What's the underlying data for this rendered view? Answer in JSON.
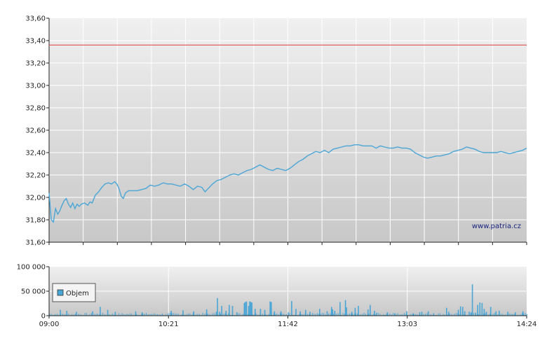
{
  "chart_data": [
    {
      "type": "line",
      "title": "",
      "watermark": "www.patria.cz",
      "y_ticks": [
        "33,60",
        "33,40",
        "33,20",
        "33,00",
        "32,80",
        "32,60",
        "32,40",
        "32,20",
        "32,00",
        "31,80",
        "31,60"
      ],
      "ylim": [
        31.6,
        33.6
      ],
      "reference_line": {
        "value": 33.36,
        "color": "#e06060"
      },
      "line_color": "#4aa6d6",
      "grid": true,
      "series": [
        {
          "points": [
            [
              0,
              32.04
            ],
            [
              2,
              31.8
            ],
            [
              4,
              31.78
            ],
            [
              6,
              31.9
            ],
            [
              8,
              31.85
            ],
            [
              10,
              31.88
            ],
            [
              12,
              31.93
            ],
            [
              14,
              31.97
            ],
            [
              16,
              31.99
            ],
            [
              18,
              31.94
            ],
            [
              20,
              31.91
            ],
            [
              22,
              31.95
            ],
            [
              24,
              31.9
            ],
            [
              26,
              31.94
            ],
            [
              28,
              31.92
            ],
            [
              30,
              31.94
            ],
            [
              33,
              31.95
            ],
            [
              36,
              31.93
            ],
            [
              38,
              31.96
            ],
            [
              40,
              31.95
            ],
            [
              43,
              32.02
            ],
            [
              46,
              32.05
            ],
            [
              49,
              32.09
            ],
            [
              52,
              32.12
            ],
            [
              55,
              32.13
            ],
            [
              58,
              32.12
            ],
            [
              61,
              32.14
            ],
            [
              63,
              32.12
            ],
            [
              65,
              32.08
            ],
            [
              67,
              32.01
            ],
            [
              69,
              31.99
            ],
            [
              71,
              32.04
            ],
            [
              74,
              32.06
            ],
            [
              78,
              32.06
            ],
            [
              82,
              32.06
            ],
            [
              86,
              32.07
            ],
            [
              90,
              32.08
            ],
            [
              94,
              32.11
            ],
            [
              98,
              32.1
            ],
            [
              102,
              32.11
            ],
            [
              106,
              32.13
            ],
            [
              110,
              32.12
            ],
            [
              114,
              32.12
            ],
            [
              118,
              32.11
            ],
            [
              122,
              32.1
            ],
            [
              126,
              32.12
            ],
            [
              130,
              32.1
            ],
            [
              134,
              32.07
            ],
            [
              138,
              32.1
            ],
            [
              142,
              32.09
            ],
            [
              145,
              32.05
            ],
            [
              148,
              32.08
            ],
            [
              152,
              32.12
            ],
            [
              156,
              32.15
            ],
            [
              160,
              32.16
            ],
            [
              164,
              32.18
            ],
            [
              168,
              32.2
            ],
            [
              172,
              32.21
            ],
            [
              176,
              32.2
            ],
            [
              180,
              32.22
            ],
            [
              184,
              32.24
            ],
            [
              188,
              32.25
            ],
            [
              192,
              32.27
            ],
            [
              196,
              32.29
            ],
            [
              200,
              32.27
            ],
            [
              204,
              32.25
            ],
            [
              208,
              32.24
            ],
            [
              212,
              32.26
            ],
            [
              216,
              32.25
            ],
            [
              220,
              32.24
            ],
            [
              224,
              32.26
            ],
            [
              228,
              32.29
            ],
            [
              232,
              32.32
            ],
            [
              236,
              32.34
            ],
            [
              240,
              32.37
            ],
            [
              244,
              32.39
            ],
            [
              248,
              32.41
            ],
            [
              252,
              32.4
            ],
            [
              256,
              32.42
            ],
            [
              260,
              32.4
            ],
            [
              264,
              32.43
            ],
            [
              268,
              32.44
            ],
            [
              272,
              32.45
            ],
            [
              276,
              32.46
            ],
            [
              280,
              32.46
            ],
            [
              284,
              32.47
            ],
            [
              288,
              32.47
            ],
            [
              292,
              32.46
            ],
            [
              296,
              32.46
            ],
            [
              300,
              32.46
            ],
            [
              304,
              32.44
            ],
            [
              308,
              32.46
            ],
            [
              312,
              32.45
            ],
            [
              316,
              32.44
            ],
            [
              320,
              32.44
            ],
            [
              324,
              32.45
            ],
            [
              328,
              32.44
            ],
            [
              332,
              32.44
            ],
            [
              336,
              32.43
            ],
            [
              340,
              32.4
            ],
            [
              344,
              32.38
            ],
            [
              348,
              32.36
            ],
            [
              352,
              32.35
            ],
            [
              356,
              32.36
            ],
            [
              360,
              32.37
            ],
            [
              364,
              32.37
            ],
            [
              368,
              32.38
            ],
            [
              372,
              32.39
            ],
            [
              376,
              32.41
            ],
            [
              380,
              32.42
            ],
            [
              384,
              32.43
            ],
            [
              388,
              32.45
            ],
            [
              392,
              32.44
            ],
            [
              396,
              32.43
            ],
            [
              400,
              32.41
            ],
            [
              404,
              32.4
            ],
            [
              408,
              32.4
            ],
            [
              412,
              32.4
            ],
            [
              416,
              32.4
            ],
            [
              420,
              32.41
            ],
            [
              424,
              32.4
            ],
            [
              428,
              32.39
            ],
            [
              432,
              32.4
            ],
            [
              436,
              32.41
            ],
            [
              440,
              32.42
            ],
            [
              444,
              32.44
            ]
          ]
        }
      ]
    },
    {
      "type": "bar",
      "title": "",
      "y_ticks": [
        "100 000",
        "50 000",
        "0"
      ],
      "ylim": [
        0,
        100000
      ],
      "x_ticks": [
        "09:00",
        "10:21",
        "11:42",
        "13:03",
        "14:24"
      ],
      "legend": {
        "label": "Objem",
        "placement": "left",
        "swatch_color": "#4aa6d6"
      },
      "bar_color": "#4aa6d6",
      "series": [
        {
          "name": "Objem",
          "spikes": [
            [
              10,
              12000
            ],
            [
              16,
              10000
            ],
            [
              25,
              8000
            ],
            [
              40,
              9000
            ],
            [
              47,
              18000
            ],
            [
              54,
              12000
            ],
            [
              61,
              8000
            ],
            [
              80,
              9000
            ],
            [
              86,
              7000
            ],
            [
              113,
              10000
            ],
            [
              124,
              11000
            ],
            [
              134,
              9000
            ],
            [
              146,
              13000
            ],
            [
              155,
              8000
            ],
            [
              158,
              8000
            ],
            [
              164,
              10000
            ],
            [
              170,
              20000
            ],
            [
              174,
              7000
            ],
            [
              181,
              6000
            ],
            [
              188,
              5000
            ],
            [
              196,
              14000
            ],
            [
              200,
              12000
            ],
            [
              206,
              17000
            ],
            [
              209,
              9000
            ],
            [
              215,
              9000
            ],
            [
              222,
              7000
            ],
            [
              233,
              9000
            ],
            [
              242,
              8000
            ],
            [
              251,
              14000
            ],
            [
              258,
              9000
            ],
            [
              265,
              10000
            ],
            [
              275,
              32000
            ],
            [
              281,
              8000
            ],
            [
              287,
              20000
            ],
            [
              296,
              13000
            ],
            [
              304,
              6000
            ],
            [
              314,
              7000
            ],
            [
              321,
              5000
            ],
            [
              332,
              9000
            ],
            [
              338,
              5000
            ],
            [
              344,
              7000
            ],
            [
              352,
              9000
            ],
            [
              357,
              5000
            ],
            [
              371,
              8000
            ],
            [
              386,
              9000
            ],
            [
              390,
              8000
            ],
            [
              392,
              7000
            ],
            [
              398,
              9000
            ],
            [
              402,
              26000
            ],
            [
              406,
              8000
            ],
            [
              410,
              18000
            ],
            [
              418,
              10000
            ],
            [
              426,
              8000
            ],
            [
              433,
              7000
            ],
            [
              440,
              9000
            ]
          ],
          "tall_bars": [
            [
              156,
              36000
            ],
            [
              160,
              20000
            ],
            [
              167,
              22000
            ],
            [
              185,
              20000
            ],
            [
              225,
              30000
            ],
            [
              229,
              14000
            ],
            [
              238,
              12000
            ],
            [
              263,
              13000
            ],
            [
              284,
              16000
            ],
            [
              298,
              22000
            ],
            [
              302,
              10000
            ],
            [
              346,
              8000
            ],
            [
              380,
              12000
            ],
            [
              384,
              10000
            ],
            [
              396,
              6000
            ]
          ],
          "special_bars": [
            [
              181,
              26000
            ],
            [
              182,
              28000
            ],
            [
              183,
              29000
            ],
            [
              186,
              29000
            ],
            [
              187,
              28000
            ],
            [
              188,
              27000
            ],
            [
              191,
              14000
            ],
            [
              205,
              29000
            ],
            [
              206,
              28000
            ],
            [
              262,
              18000
            ],
            [
              270,
              28000
            ],
            [
              276,
              17000
            ],
            [
              369,
              16000
            ],
            [
              382,
              19000
            ],
            [
              384,
              18000
            ],
            [
              393,
              64000
            ],
            [
              398,
              22000
            ],
            [
              400,
              27000
            ],
            [
              404,
              14000
            ],
            [
              415,
              9000
            ]
          ]
        }
      ]
    }
  ]
}
